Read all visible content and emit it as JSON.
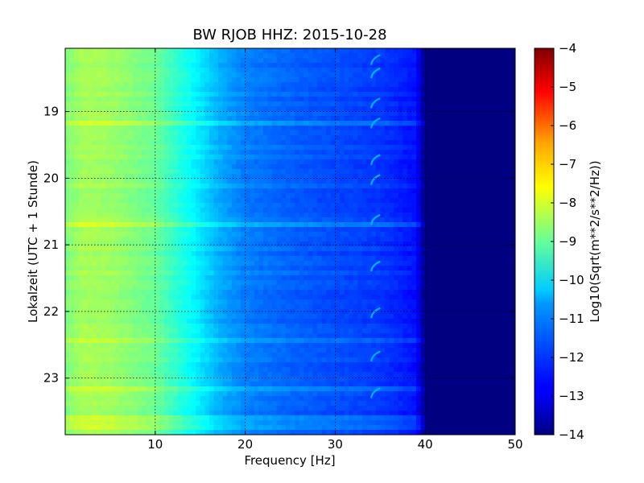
{
  "chart_data": {
    "type": "heatmap",
    "title": "BW RJOB HHZ: 2015-10-28",
    "xlabel": "Frequency [Hz]",
    "ylabel": "Lokalzeit (UTC + 1 Stunde)",
    "xlim": [
      0,
      50
    ],
    "ylim": [
      23.85,
      18.05
    ],
    "y_inverted": true,
    "x_ticks": [
      10,
      20,
      30,
      40,
      50
    ],
    "y_ticks": [
      19,
      20,
      21,
      22,
      23
    ],
    "grid": true,
    "colormap": "jet",
    "colorbar": {
      "label": "Log10(Sqrt(m**2/s**2/Hz))",
      "range": [
        -14,
        -4
      ],
      "ticks": [
        -14,
        -13,
        -12,
        -11,
        -10,
        -9,
        -8,
        -7,
        -6,
        -5,
        -4
      ]
    },
    "spectrum_profile": {
      "frequency_hz": [
        0,
        2,
        5,
        10,
        14,
        17,
        20,
        25,
        30,
        35,
        39,
        40,
        50
      ],
      "log_amplitude": [
        -9.0,
        -8.6,
        -8.7,
        -9.2,
        -10.2,
        -11.0,
        -11.5,
        -11.8,
        -12.0,
        -12.2,
        -12.6,
        -14.0,
        -14.0
      ]
    },
    "narrowband_signal": {
      "frequency_hz": [
        34.0,
        35.0
      ],
      "log_amplitude": -11.0,
      "appearances_hour": [
        18.2,
        18.4,
        18.85,
        19.15,
        19.7,
        20.0,
        20.6,
        21.3,
        22.0,
        22.65,
        23.2
      ]
    }
  }
}
